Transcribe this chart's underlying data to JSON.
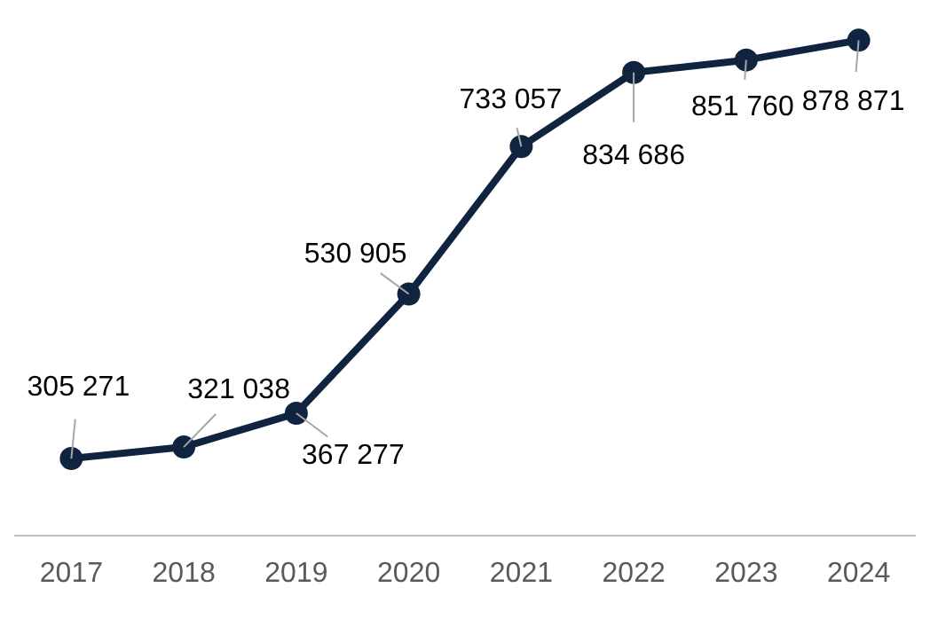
{
  "chart_data": {
    "type": "line",
    "categories": [
      "2017",
      "2018",
      "2019",
      "2020",
      "2021",
      "2022",
      "2023",
      "2024"
    ],
    "series": [
      {
        "color": "#10233f",
        "values": [
          305271,
          321038,
          367277,
          530905,
          733057,
          834686,
          851760,
          878871
        ],
        "value_labels": [
          "305 271",
          "321 038",
          "367 277",
          "530 905",
          "733 057",
          "834 686",
          "851 760",
          "878 871"
        ]
      }
    ],
    "tick_labels": "x",
    "grid": false,
    "legend": false,
    "marker": "circle",
    "line_style": "solid"
  }
}
